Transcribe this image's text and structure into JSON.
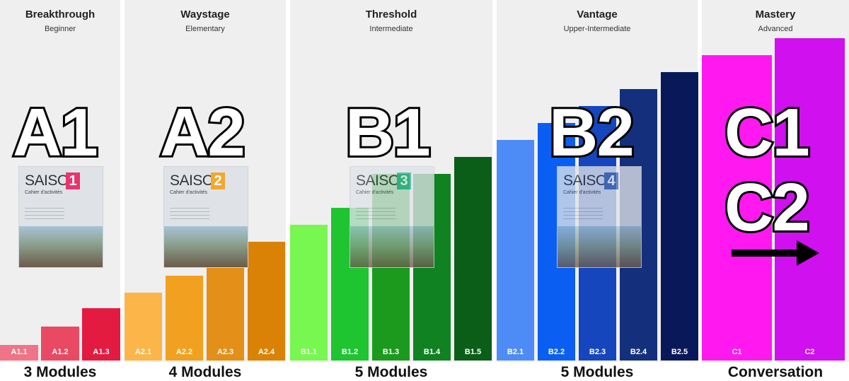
{
  "chart_data": {
    "type": "bar",
    "title": "",
    "ylim": [
      0,
      460
    ],
    "groups": [
      {
        "title": "Breakthrough",
        "subtitle": "Beginner",
        "big": "A1",
        "module": "3 Modules",
        "categories": [
          "A1.1",
          "A1.2",
          "A1.3"
        ],
        "values": [
          22,
          48,
          74
        ],
        "colors": [
          "#f07387",
          "#ea4964",
          "#e31b41"
        ]
      },
      {
        "title": "Waystage",
        "subtitle": "Elementary",
        "big": "A2",
        "module": "4 Modules",
        "categories": [
          "A2.1",
          "A2.2",
          "A2.3",
          "A2.4"
        ],
        "values": [
          96,
          120,
          136,
          168
        ],
        "colors": [
          "#fbb548",
          "#f2a020",
          "#e48f18",
          "#d98206"
        ]
      },
      {
        "title": "Threshold",
        "subtitle": "Intermediate",
        "big": "B1",
        "module": "5 Modules",
        "categories": [
          "B1.1",
          "B1.2",
          "B1.3",
          "B1.4",
          "B1.5"
        ],
        "values": [
          192,
          216,
          264,
          264,
          288
        ],
        "colors": [
          "#77f750",
          "#1ec530",
          "#1b9a1e",
          "#108222",
          "#0b5e18"
        ]
      },
      {
        "title": "Vantage",
        "subtitle": "Upper-Intermediate",
        "big": "B2",
        "module": "5 Modules",
        "categories": [
          "B2.1",
          "B2.2",
          "B2.3",
          "B2.4",
          "B2.5"
        ],
        "values": [
          312,
          336,
          360,
          384,
          408
        ],
        "colors": [
          "#4d8cf7",
          "#0a5ff2",
          "#1646be",
          "#14307c",
          "#091858"
        ]
      },
      {
        "title": "Mastery",
        "subtitle": "Advanced",
        "big": "C1\nC2",
        "module": "Conversation",
        "categories": [
          "C1",
          "C2"
        ],
        "values": [
          432,
          456
        ],
        "colors": [
          "#ff19f0",
          "#d010ee"
        ]
      }
    ]
  },
  "books": [
    {
      "title": "SAISON",
      "number": "1",
      "subtitle": "Cahier d'activités",
      "color": "#e8356b"
    },
    {
      "title": "SAISON",
      "number": "2",
      "subtitle": "Cahier d'activités",
      "color": "#f2a72e"
    },
    {
      "title": "SAISON",
      "number": "3",
      "subtitle": "Cahier d'activités",
      "color": "#38b49b"
    },
    {
      "title": "SAISON",
      "number": "4",
      "subtitle": "Cahier d'activités",
      "color": "#4a6fb0"
    }
  ]
}
